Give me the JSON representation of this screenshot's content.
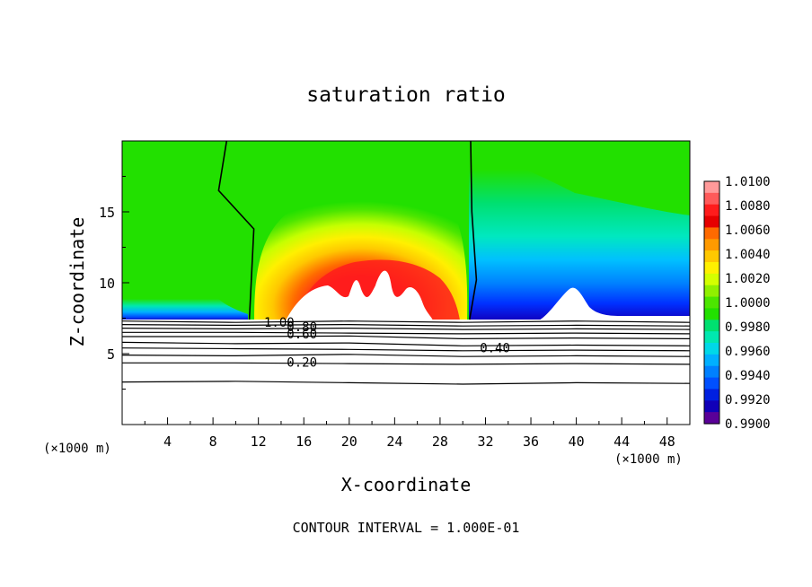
{
  "chart_data": {
    "type": "heatmap",
    "title": "saturation ratio",
    "xlabel": "X-coordinate",
    "ylabel": "Z-coordinate",
    "x_unit_note_left": "(×1000 m)",
    "x_unit_note_right": "(×1000 m)",
    "footer": "CONTOUR INTERVAL = 1.000E-01",
    "xlim": [
      0,
      50
    ],
    "ylim": [
      0,
      20
    ],
    "x_ticks": [
      4,
      8,
      12,
      16,
      20,
      24,
      28,
      32,
      36,
      40,
      44,
      48
    ],
    "y_ticks": [
      5,
      10,
      15
    ],
    "colorbar": {
      "ticks": [
        "1.0100",
        "1.0080",
        "1.0060",
        "1.0040",
        "1.0020",
        "1.0000",
        "0.9980",
        "0.9960",
        "0.9940",
        "0.9920",
        "0.9900"
      ],
      "colors": [
        "#ff9a9a",
        "#ff5a5a",
        "#ff1c1c",
        "#e60000",
        "#ff6a00",
        "#ff9a00",
        "#ffc800",
        "#fff000",
        "#d4ff00",
        "#90f000",
        "#4ce600",
        "#22e000",
        "#00e070",
        "#00e8b0",
        "#00d8e8",
        "#00b0ff",
        "#0080ff",
        "#0050ff",
        "#0020e0",
        "#1000b8",
        "#5a0098"
      ]
    },
    "contour_labels": [
      {
        "text": "1.00",
        "x": 12.5,
        "y": 7.2
      },
      {
        "text": "0.80",
        "x": 14.5,
        "y": 6.9
      },
      {
        "text": "0.60",
        "x": 14.5,
        "y": 6.4
      },
      {
        "text": "0.40",
        "x": 31.5,
        "y": 5.4
      },
      {
        "text": "0.20",
        "x": 14.5,
        "y": 4.4
      }
    ],
    "contour_lines": [
      {
        "level": 1.0,
        "points": [
          [
            0,
            7.3
          ],
          [
            10,
            7.2
          ],
          [
            20,
            7.3
          ],
          [
            30,
            7.2
          ],
          [
            40,
            7.3
          ],
          [
            50,
            7.2
          ]
        ]
      },
      {
        "level": 0.9,
        "points": [
          [
            0,
            7.05
          ],
          [
            10,
            7.0
          ],
          [
            20,
            7.05
          ],
          [
            30,
            6.95
          ],
          [
            40,
            7.0
          ],
          [
            50,
            6.95
          ]
        ]
      },
      {
        "level": 0.8,
        "points": [
          [
            0,
            6.8
          ],
          [
            10,
            6.75
          ],
          [
            20,
            6.8
          ],
          [
            30,
            6.7
          ],
          [
            40,
            6.75
          ],
          [
            50,
            6.7
          ]
        ]
      },
      {
        "level": 0.7,
        "points": [
          [
            0,
            6.5
          ],
          [
            10,
            6.5
          ],
          [
            20,
            6.45
          ],
          [
            30,
            6.4
          ],
          [
            40,
            6.45
          ],
          [
            50,
            6.4
          ]
        ]
      },
      {
        "level": 0.6,
        "points": [
          [
            0,
            6.2
          ],
          [
            10,
            6.2
          ],
          [
            20,
            6.25
          ],
          [
            30,
            6.05
          ],
          [
            40,
            6.1
          ],
          [
            50,
            6.05
          ]
        ]
      },
      {
        "level": 0.5,
        "points": [
          [
            0,
            5.8
          ],
          [
            10,
            5.7
          ],
          [
            20,
            5.75
          ],
          [
            30,
            5.55
          ],
          [
            40,
            5.6
          ],
          [
            50,
            5.55
          ]
        ]
      },
      {
        "level": 0.4,
        "points": [
          [
            0,
            5.4
          ],
          [
            10,
            5.35
          ],
          [
            20,
            5.3
          ],
          [
            30,
            5.2
          ],
          [
            40,
            5.25
          ],
          [
            50,
            5.2
          ]
        ]
      },
      {
        "level": 0.3,
        "points": [
          [
            0,
            4.9
          ],
          [
            10,
            4.85
          ],
          [
            20,
            4.95
          ],
          [
            30,
            4.8
          ],
          [
            40,
            4.85
          ],
          [
            50,
            4.8
          ]
        ]
      },
      {
        "level": 0.2,
        "points": [
          [
            0,
            4.35
          ],
          [
            10,
            4.35
          ],
          [
            20,
            4.3
          ],
          [
            30,
            4.25
          ],
          [
            40,
            4.3
          ],
          [
            50,
            4.25
          ]
        ]
      },
      {
        "level": 0.1,
        "points": [
          [
            0,
            3.0
          ],
          [
            10,
            3.05
          ],
          [
            20,
            2.95
          ],
          [
            30,
            2.85
          ],
          [
            40,
            2.95
          ],
          [
            50,
            2.9
          ]
        ]
      }
    ],
    "boundary_lines": [
      {
        "level": 1.0,
        "points": [
          [
            9.2,
            20
          ],
          [
            8.5,
            16.5
          ],
          [
            11.6,
            13.8
          ],
          [
            11.3,
            8.9
          ],
          [
            11.2,
            7.4
          ]
        ]
      },
      {
        "level": 1.0,
        "points": [
          [
            30.7,
            20
          ],
          [
            30.8,
            15.0
          ],
          [
            31.2,
            10.2
          ],
          [
            30.6,
            7.4
          ]
        ]
      }
    ]
  }
}
